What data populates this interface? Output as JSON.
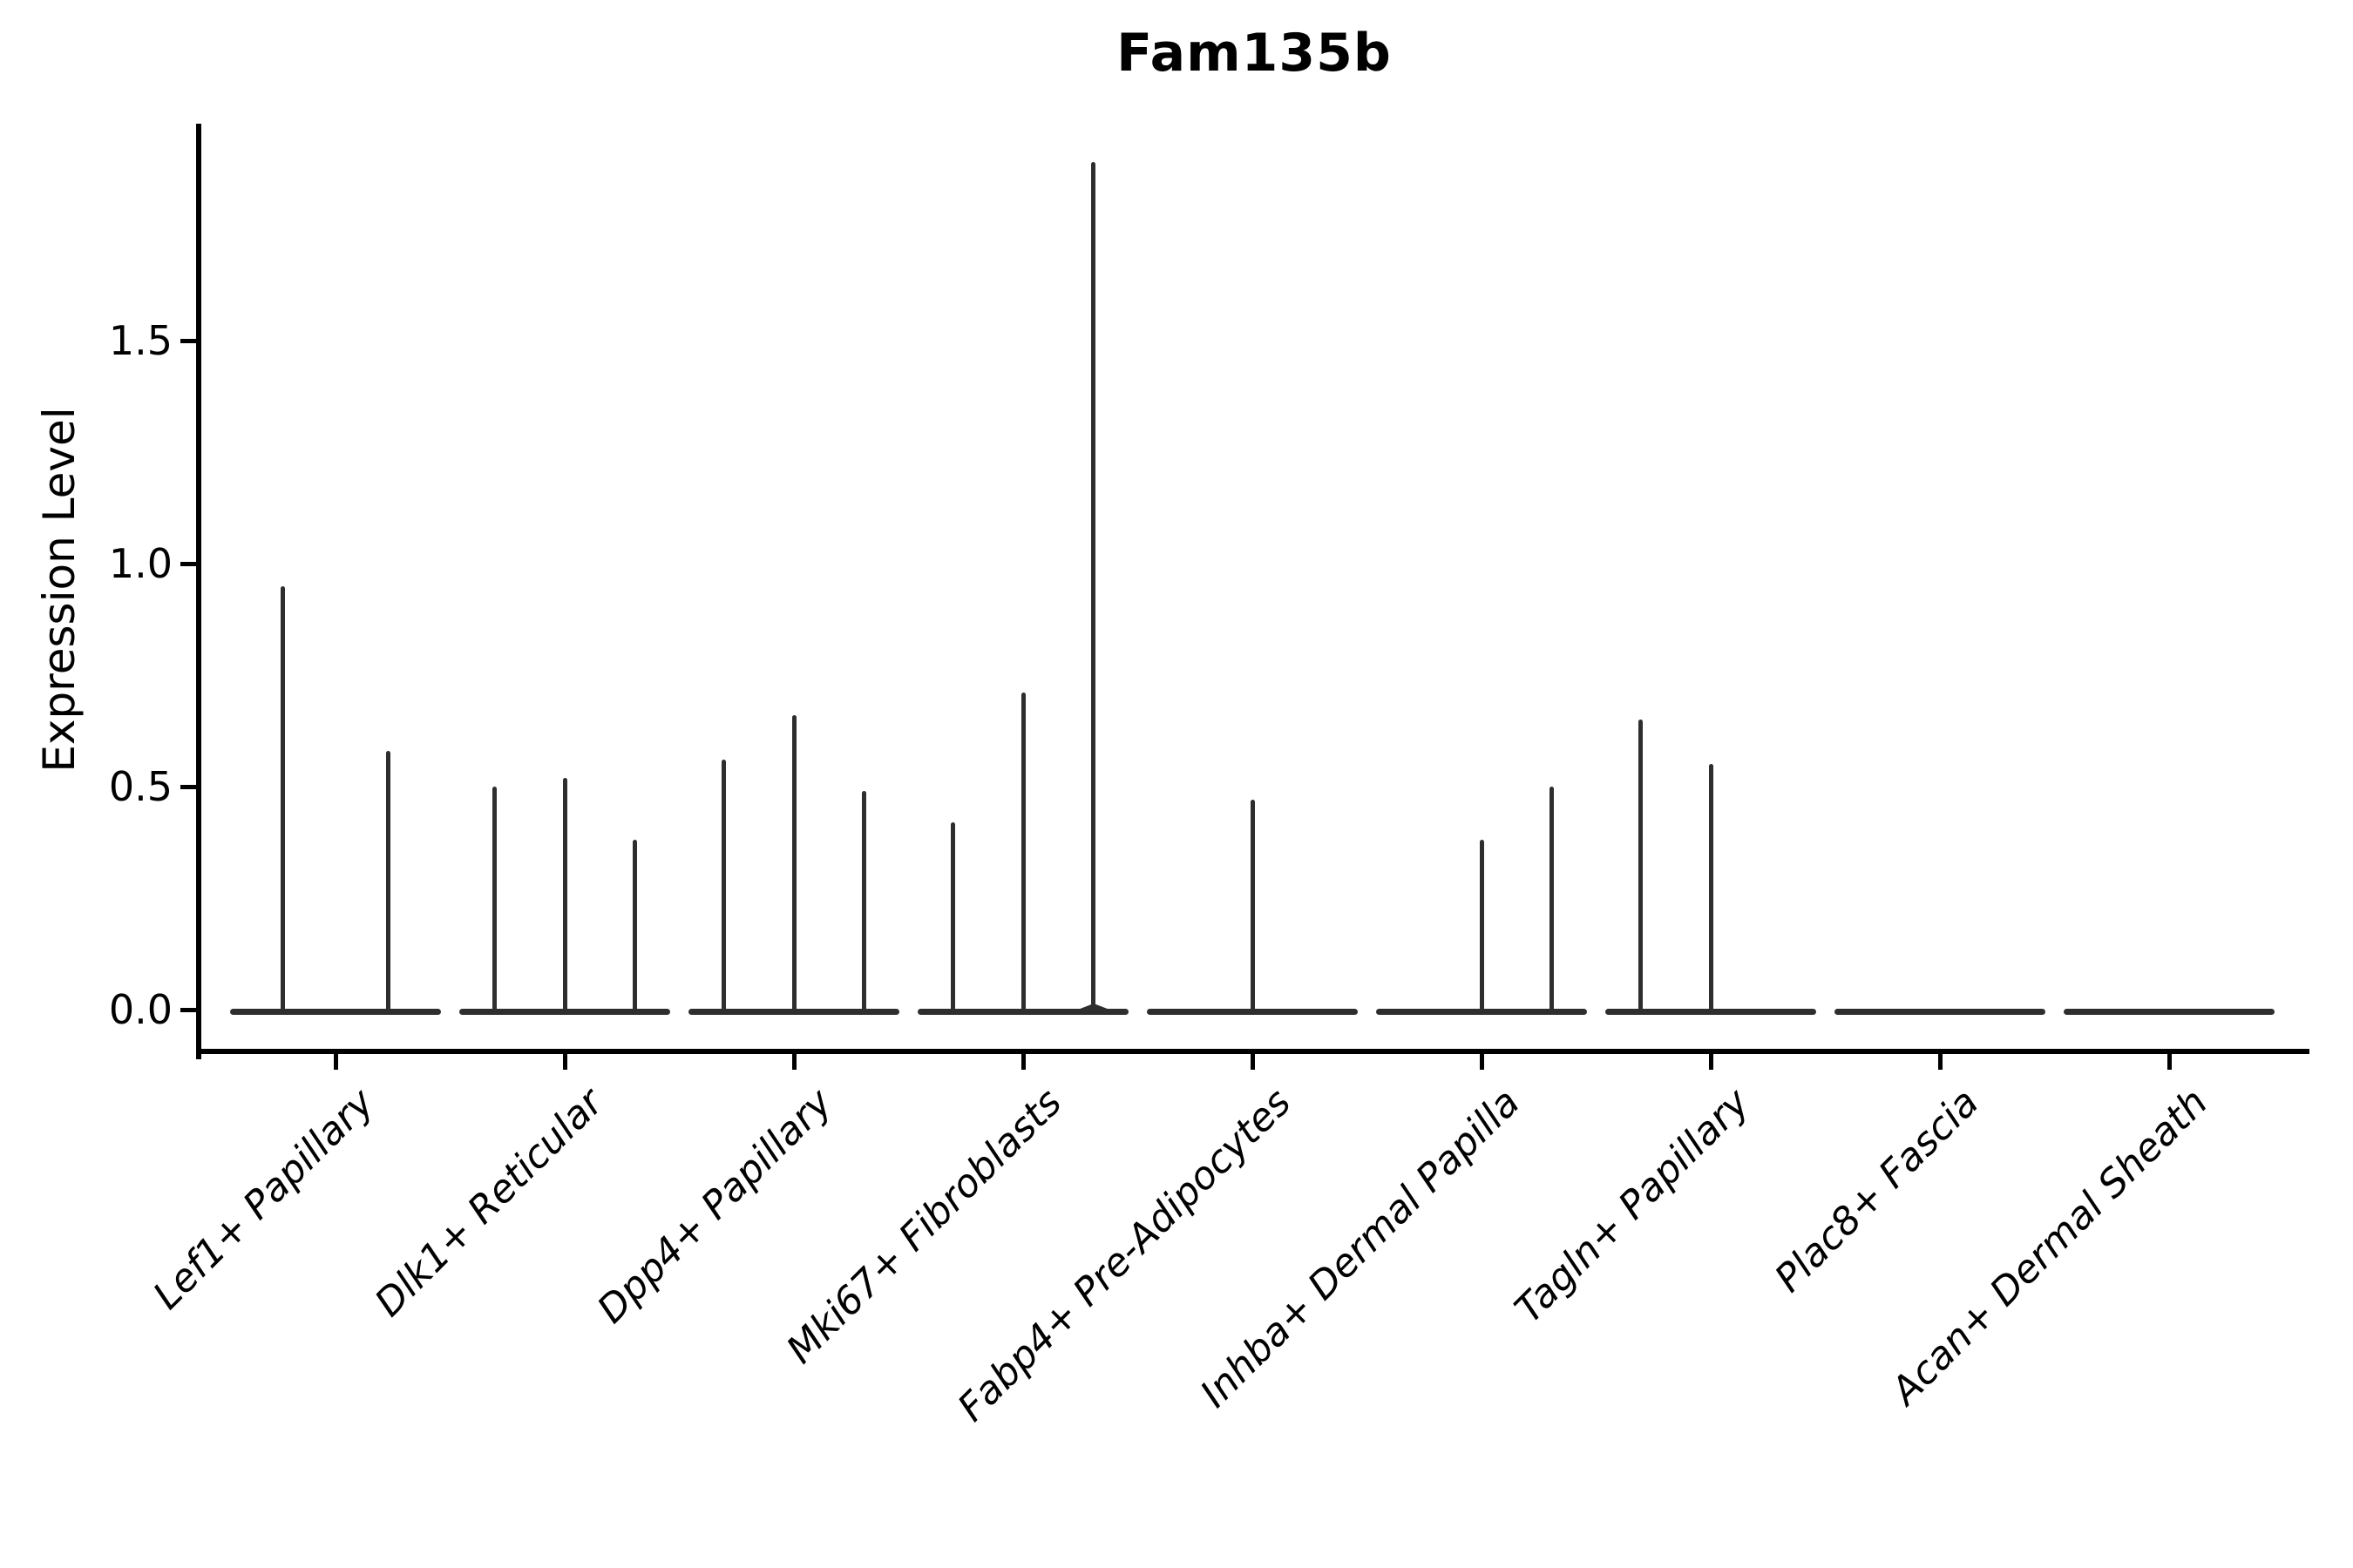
{
  "title": "Fam135b",
  "ylabel": "Expression Level",
  "colors": {
    "ink": "#000000",
    "violin": "#2e2e2e"
  },
  "chart_data": {
    "type": "violin",
    "title": "Fam135b",
    "xlabel": "",
    "ylabel": "Expression Level",
    "ylim": [
      0,
      2.0
    ],
    "yticks": [
      0.0,
      0.5,
      1.0,
      1.5
    ],
    "grid": false,
    "legend": null,
    "categories": [
      "Lef1+ Papillary",
      "Dlk1+ Reticular",
      "Dpp4+ Papillary",
      "Mki67+ Fibroblasts",
      "Fabp4+ Pre-Adipocytes",
      "Inhba+ Dermal Papilla",
      "Tagln+ Papillary",
      "Plac8+ Fascia",
      "Acan+ Dermal Sheath"
    ],
    "violins": [
      {
        "category": "Lef1+ Papillary",
        "n_groups": 2,
        "spikes": [
          {
            "pos": -0.25,
            "peak": 0.95
          },
          {
            "pos": 0.25,
            "peak": 0.58
          }
        ]
      },
      {
        "category": "Dlk1+ Reticular",
        "n_groups": 3,
        "spikes": [
          {
            "pos": -0.333,
            "peak": 0.5
          },
          {
            "pos": 0,
            "peak": 0.52
          },
          {
            "pos": 0.333,
            "peak": 0.38
          }
        ]
      },
      {
        "category": "Dpp4+ Papillary",
        "n_groups": 3,
        "spikes": [
          {
            "pos": -0.333,
            "peak": 0.56
          },
          {
            "pos": 0,
            "peak": 0.66
          },
          {
            "pos": 0.333,
            "peak": 0.49
          }
        ]
      },
      {
        "category": "Mki67+ Fibroblasts",
        "n_groups": 3,
        "spikes": [
          {
            "pos": -0.333,
            "peak": 0.42
          },
          {
            "pos": 0,
            "peak": 0.71
          },
          {
            "pos": 0.333,
            "peak": 1.9
          }
        ]
      },
      {
        "category": "Fabp4+ Pre-Adipocytes",
        "n_groups": 3,
        "spikes": [
          {
            "pos": 0,
            "peak": 0.47
          }
        ]
      },
      {
        "category": "Inhba+ Dermal Papilla",
        "n_groups": 3,
        "spikes": [
          {
            "pos": 0,
            "peak": 0.38
          },
          {
            "pos": 0.333,
            "peak": 0.5
          }
        ]
      },
      {
        "category": "Tagln+ Papillary",
        "n_groups": 3,
        "spikes": [
          {
            "pos": -0.333,
            "peak": 0.65
          },
          {
            "pos": 0,
            "peak": 0.55
          }
        ]
      },
      {
        "category": "Plac8+ Fascia",
        "n_groups": 3,
        "spikes": []
      },
      {
        "category": "Acan+ Dermal Sheath",
        "n_groups": 3,
        "spikes": []
      }
    ]
  }
}
